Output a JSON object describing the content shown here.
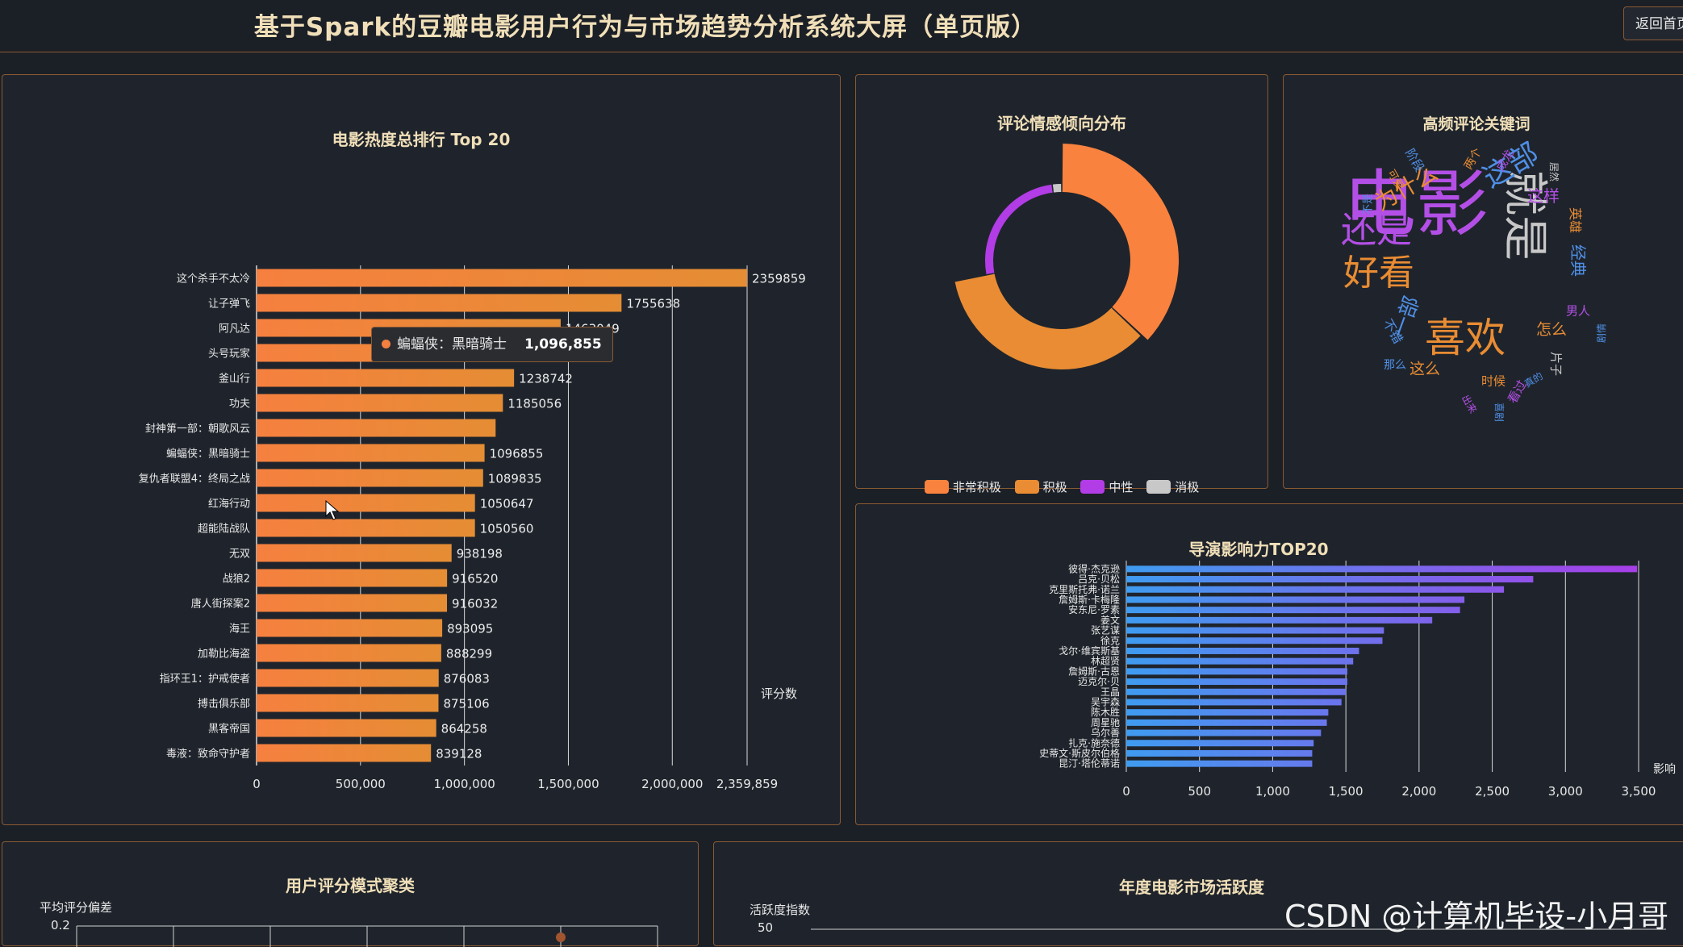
{
  "header": {
    "title": "基于Spark的豆瓣电影用户行为与市场趋势分析系统大屏（单页版）",
    "back_button": "返回首页"
  },
  "hot_chart": {
    "title": "电影热度总排行 Top 20",
    "axis_name": "评分数",
    "tooltip": {
      "name": "蝙蝠侠：黑暗骑士",
      "value": "1,096,855"
    },
    "chart_data": {
      "type": "bar",
      "orientation": "horizontal",
      "categories": [
        "这个杀手不太冷",
        "让子弹飞",
        "阿凡达",
        "头号玩家",
        "釜山行",
        "功夫",
        "封神第一部：朝歌风云",
        "蝙蝠侠：黑暗骑士",
        "复仇者联盟4：终局之战",
        "红海行动",
        "超能陆战队",
        "无双",
        "战狼2",
        "唐人街探案2",
        "海王",
        "加勒比海盗",
        "指环王1：护戒使者",
        "搏击俱乐部",
        "黑客帝国",
        "毒液：致命守护者"
      ],
      "values": [
        2359859,
        1755638,
        1463049,
        1406402,
        1238742,
        1185056,
        1150000,
        1096855,
        1089835,
        1050647,
        1050560,
        938198,
        916520,
        916032,
        893095,
        888299,
        876083,
        875106,
        864258,
        839128
      ],
      "value_labels": [
        "2359859",
        "1755638",
        "1463049",
        "1406402",
        "1238742",
        "1185056",
        "",
        "1096855",
        "1089835",
        "1050647",
        "1050560",
        "938198",
        "916520",
        "916032",
        "893095",
        "888299",
        "876083",
        "875106",
        "864258",
        "839128"
      ],
      "x_ticks": [
        "0",
        "500,000",
        "1,000,000",
        "1,500,000",
        "2,000,000",
        "2,359,859"
      ],
      "xlim": [
        0,
        2359859
      ],
      "color": "#ec8a3c"
    }
  },
  "sentiment_chart": {
    "title": "评论情感倾向分布",
    "chart_data": {
      "type": "pie",
      "donut": true,
      "labels": [
        "非常积极",
        "积极",
        "中性",
        "消极"
      ],
      "values": [
        37,
        35,
        26,
        2
      ],
      "colors": [
        "#f9823e",
        "#e98c33",
        "#b23ce6",
        "#c8c8c8"
      ]
    }
  },
  "wordcloud": {
    "title": "高频评论关键词",
    "words": [
      {
        "t": "电影",
        "c": "#b34fe6",
        "s": 90
      },
      {
        "t": "就是",
        "c": "#c8c8c8",
        "s": 56
      },
      {
        "t": "还是",
        "c": "#b34fe6",
        "s": 44
      },
      {
        "t": "好看",
        "c": "#e98c33",
        "s": 44
      },
      {
        "t": "喜欢",
        "c": "#e98c33",
        "s": 50
      },
      {
        "t": "这部",
        "c": "#4f8fe6",
        "s": 36
      },
      {
        "t": "为什么",
        "c": "#e98c33",
        "s": 28
      },
      {
        "t": "一部",
        "c": "#4f8fe6",
        "s": 26
      },
      {
        "t": "这样",
        "c": "#b34fe6",
        "s": 20
      },
      {
        "t": "经典",
        "c": "#4f8fe6",
        "s": 20
      },
      {
        "t": "怎么",
        "c": "#e98c33",
        "s": 19
      },
      {
        "t": "这么",
        "c": "#e98c33",
        "s": 19
      },
      {
        "t": "英雄",
        "c": "#e98c33",
        "s": 16
      },
      {
        "t": "片子",
        "c": "#c8c8c8",
        "s": 15
      },
      {
        "t": "男人",
        "c": "#b34fe6",
        "s": 15
      },
      {
        "t": "时候",
        "c": "#e98c33",
        "s": 15
      },
      {
        "t": "看过",
        "c": "#b34fe6",
        "s": 15
      },
      {
        "t": "不错",
        "c": "#4f8fe6",
        "s": 16
      },
      {
        "t": "那么",
        "c": "#4f8fe6",
        "s": 14
      },
      {
        "t": "阶段",
        "c": "#4f8fe6",
        "s": 15
      },
      {
        "t": "两个",
        "c": "#e98c33",
        "s": 14
      },
      {
        "t": "成龙",
        "c": "#b34fe6",
        "s": 14
      },
      {
        "t": "居然",
        "c": "#c8c8c8",
        "s": 12
      },
      {
        "t": "可爱",
        "c": "#e98c33",
        "s": 13
      },
      {
        "t": "不是",
        "c": "#4f8fe6",
        "s": 13
      },
      {
        "t": "剧情",
        "c": "#4f8fe6",
        "s": 12
      },
      {
        "t": "出来",
        "c": "#b34fe6",
        "s": 12
      },
      {
        "t": "喜剧",
        "c": "#4f8fe6",
        "s": 12
      },
      {
        "t": "真的",
        "c": "#4f8fe6",
        "s": 12
      }
    ]
  },
  "director_chart": {
    "title": "导演影响力TOP20",
    "axis_name": "影响",
    "chart_data": {
      "type": "bar",
      "orientation": "horizontal",
      "categories": [
        "彼得·杰克逊",
        "吕克·贝松",
        "克里斯托弗·诺兰",
        "詹姆斯·卡梅隆",
        "安东尼·罗素",
        "姜文",
        "张艺谋",
        "徐克",
        "戈尔·维宾斯基",
        "林超贤",
        "詹姆斯·古恩",
        "迈克尔·贝",
        "王晶",
        "吴宇森",
        "陈木胜",
        "周星驰",
        "乌尔善",
        "扎克·施奈德",
        "史蒂文·斯皮尔伯格",
        "昆汀·塔伦蒂诺"
      ],
      "values": [
        3490,
        2780,
        2580,
        2310,
        2280,
        2090,
        1760,
        1750,
        1590,
        1550,
        1510,
        1510,
        1500,
        1470,
        1380,
        1370,
        1330,
        1280,
        1270,
        1270
      ],
      "x_ticks": [
        "0",
        "500",
        "1,000",
        "1,500",
        "2,000",
        "2,500",
        "3,000",
        "3,500"
      ],
      "xlim": [
        0,
        3500
      ],
      "gradient": [
        "#3f9cf0",
        "#a83ee8"
      ]
    }
  },
  "cluster_chart": {
    "title": "用户评分模式聚类",
    "ylabel": "平均评分偏差",
    "y_tick_top": "0.2"
  },
  "market_chart": {
    "title": "年度电影市场活跃度",
    "ylabel": "活跃度指数",
    "y_tick_top": "50"
  },
  "watermark": "CSDN @计算机毕设-小月哥"
}
